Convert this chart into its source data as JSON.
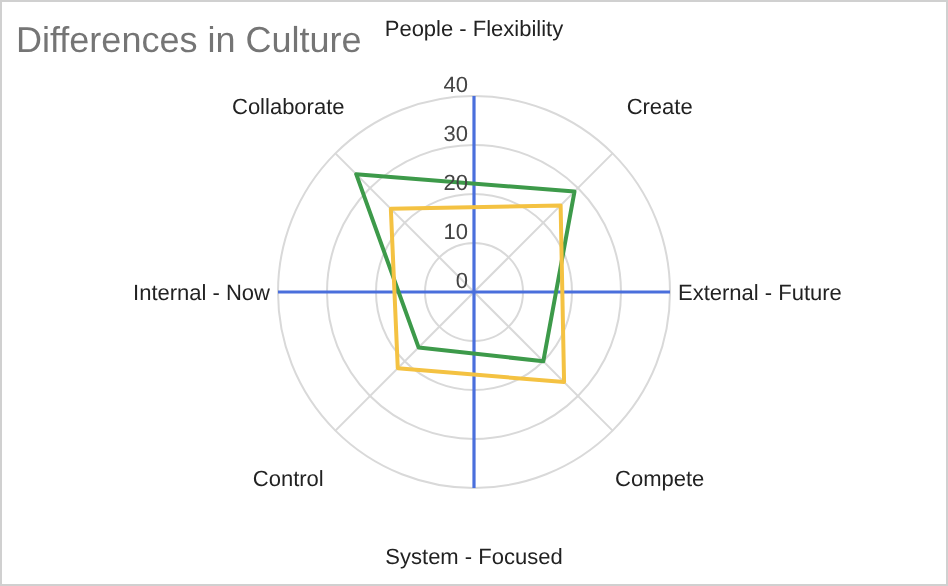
{
  "chart_data": {
    "type": "radar",
    "title": "Differences in Culture",
    "categories": [
      "Create",
      "Compete",
      "Control",
      "Collaborate"
    ],
    "series": [
      {
        "color": "#3d9a4a",
        "values": [
          29,
          20,
          16,
          34
        ]
      },
      {
        "color": "#f4c242",
        "values": [
          25,
          26,
          22,
          24
        ]
      }
    ],
    "ylim": [
      0,
      40
    ],
    "yticks": [
      0,
      10,
      20,
      30,
      40
    ],
    "grid": true,
    "annotations": [
      "People - Flexibility",
      "External - Future",
      "System - Focused",
      "Internal - Now"
    ]
  }
}
